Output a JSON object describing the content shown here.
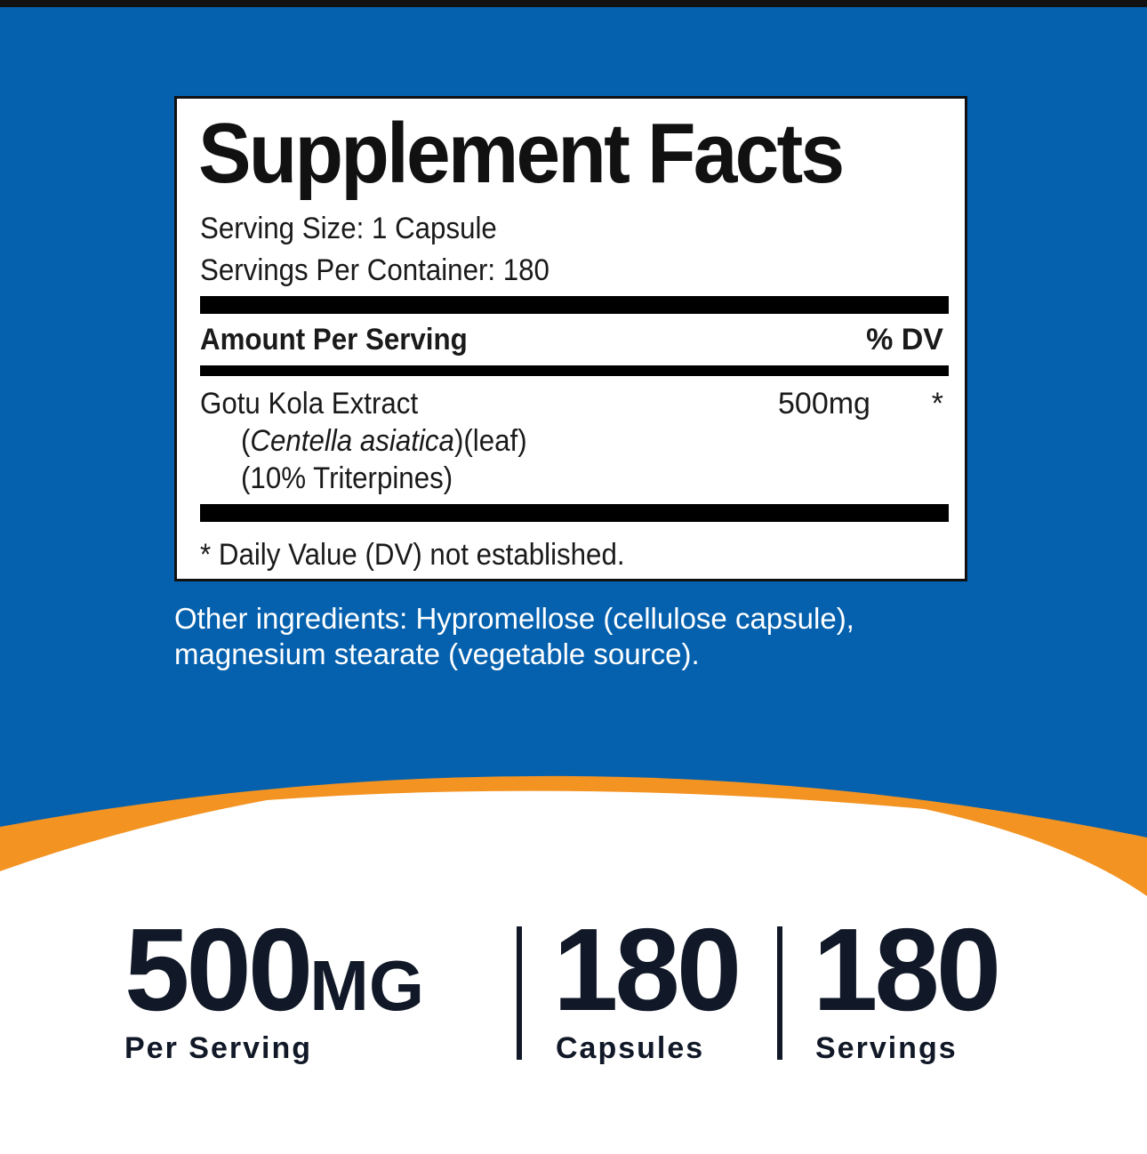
{
  "colors": {
    "blue": "#0561AE",
    "orange": "#F39322",
    "text": "#111827"
  },
  "facts": {
    "title": "Supplement Facts",
    "serving_size": "Serving Size: 1 Capsule",
    "servings_per_container": "Servings Per Container: 180",
    "amount_header": "Amount Per Serving",
    "dv_header": "% DV",
    "ingredient": {
      "name": "Gotu Kola Extract",
      "open_paren": "(",
      "latin": "Centella asiatica",
      "part": ")(leaf)",
      "standardization": "(10% Triterpines)",
      "amount": "500mg",
      "dv": "*"
    },
    "footnote": "* Daily Value (DV) not established."
  },
  "other_ingredients": [
    "Other ingredients: Hypromellose (cellulose capsule),",
    "magnesium stearate (vegetable source)."
  ],
  "stats": [
    {
      "value": "500",
      "unit": "MG",
      "label": "Per Serving"
    },
    {
      "value": "180",
      "label": "Capsules"
    },
    {
      "value": "180",
      "label": "Servings"
    }
  ]
}
